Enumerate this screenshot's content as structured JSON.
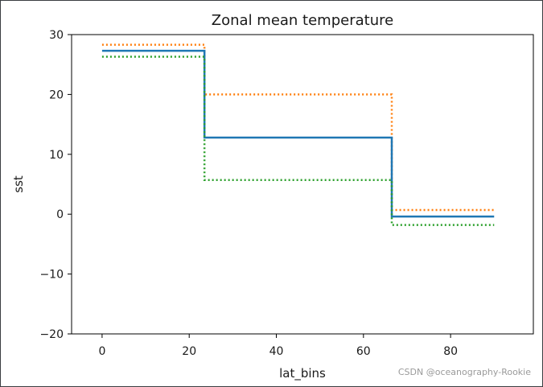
{
  "chart_data": {
    "type": "line",
    "title": "Zonal mean temperature",
    "xlabel": "lat_bins",
    "ylabel": "sst",
    "xlim": [
      -7,
      99
    ],
    "ylim": [
      -20,
      30
    ],
    "x_ticks": [
      0,
      20,
      40,
      60,
      80
    ],
    "y_ticks": [
      -20,
      -10,
      0,
      10,
      20,
      30
    ],
    "x_tick_labels": [
      "0",
      "20",
      "40",
      "60",
      "80"
    ],
    "y_tick_labels": [
      "−20",
      "−10",
      "0",
      "10",
      "20",
      "30"
    ],
    "grid": false,
    "legend": "none",
    "step_x": [
      0,
      23.5,
      66.5,
      90
    ],
    "series": [
      {
        "values": [
          28.3,
          20.0,
          0.7
        ],
        "color": "#ff7f0e",
        "style": "dotted"
      },
      {
        "values": [
          27.3,
          12.8,
          -0.4
        ],
        "color": "#1f77b4",
        "style": "solid"
      },
      {
        "values": [
          26.3,
          5.7,
          -1.8
        ],
        "color": "#2ca02c",
        "style": "dotted"
      }
    ]
  },
  "watermark": "CSDN @oceanography-Rookie"
}
